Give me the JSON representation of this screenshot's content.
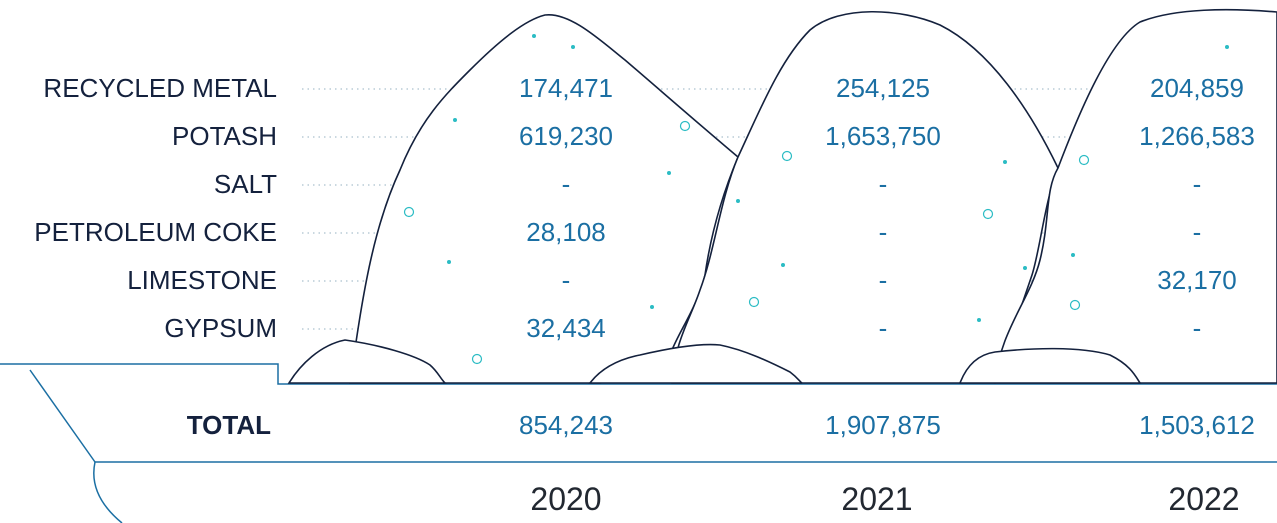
{
  "chart_data": {
    "type": "table",
    "title": "",
    "columns": [
      "2020",
      "2021",
      "2022"
    ],
    "rows": [
      {
        "name": "RECYCLED METAL",
        "values": [
          "174,471",
          "254,125",
          "204,859"
        ]
      },
      {
        "name": "POTASH",
        "values": [
          "619,230",
          "1,653,750",
          "1,266,583"
        ]
      },
      {
        "name": "SALT",
        "values": [
          "-",
          "-",
          "-"
        ]
      },
      {
        "name": "PETROLEUM COKE",
        "values": [
          "28,108",
          "-",
          "-"
        ]
      },
      {
        "name": "LIMESTONE",
        "values": [
          "-",
          "-",
          "32,170"
        ]
      },
      {
        "name": "GYPSUM",
        "values": [
          "32,434",
          "-",
          "-"
        ]
      }
    ],
    "total": {
      "label": "TOTAL",
      "values": [
        "854,243",
        "1,907,875",
        "1,503,612"
      ]
    }
  },
  "colors": {
    "value_text": "#1b6fa3",
    "label_text": "#14213d",
    "outline": "#14213d",
    "accent_dots": "#2bbcc4",
    "leader_dots": "#b9cbd6",
    "rule_lines": "#1b6fa3"
  }
}
